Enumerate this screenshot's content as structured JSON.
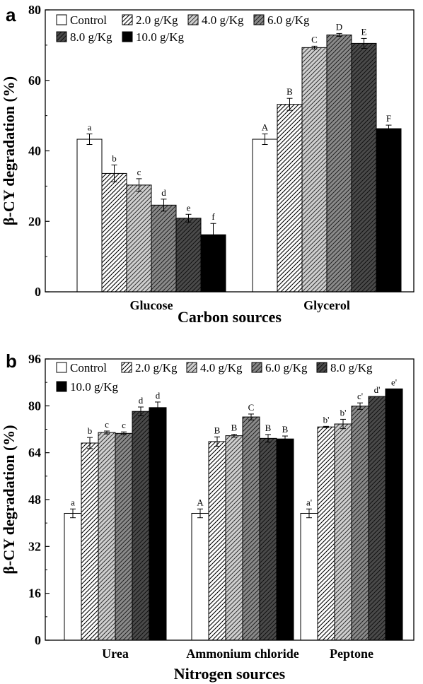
{
  "chart_data": [
    {
      "type": "bar",
      "panel_label": "a",
      "ylabel": "β-CY degradation (%)",
      "xlabel": "Carbon sources",
      "ylim": [
        0,
        80
      ],
      "yticks": [
        0,
        20,
        40,
        60,
        80
      ],
      "categories": [
        "Glucose",
        "Glycerol"
      ],
      "legend_position": "top-left",
      "series": [
        {
          "name": "Control",
          "fill": "white",
          "values": [
            43.3,
            43.3
          ],
          "errors": [
            1.5,
            1.5
          ],
          "labels": [
            "a",
            "A"
          ]
        },
        {
          "name": "2.0 g/Kg",
          "fill": "hatch-white",
          "values": [
            33.6,
            53.2
          ],
          "errors": [
            2.4,
            1.7
          ],
          "labels": [
            "b",
            "B"
          ]
        },
        {
          "name": "4.0 g/Kg",
          "fill": "hatch-lightgray",
          "values": [
            30.3,
            69.3
          ],
          "errors": [
            1.8,
            0.4
          ],
          "labels": [
            "c",
            "C"
          ]
        },
        {
          "name": "6.0 g/Kg",
          "fill": "hatch-gray",
          "values": [
            24.6,
            72.9
          ],
          "errors": [
            1.7,
            0.4
          ],
          "labels": [
            "d",
            "D"
          ]
        },
        {
          "name": "8.0 g/Kg",
          "fill": "hatch-dark",
          "values": [
            20.9,
            70.5
          ],
          "errors": [
            1.1,
            1.4
          ],
          "labels": [
            "e",
            "E"
          ]
        },
        {
          "name": "10.0 g/Kg",
          "fill": "black",
          "values": [
            16.2,
            46.3
          ],
          "errors": [
            3.2,
            1.0
          ],
          "labels": [
            "f",
            "F"
          ]
        }
      ]
    },
    {
      "type": "bar",
      "panel_label": "b",
      "ylabel": "β-CY degradation (%)",
      "xlabel": "Nitrogen sources",
      "ylim": [
        0,
        96
      ],
      "yticks": [
        0,
        16,
        32,
        48,
        64,
        80,
        96
      ],
      "categories": [
        "Urea",
        "Ammonium chloride",
        "Peptone"
      ],
      "legend_position": "top-left",
      "series": [
        {
          "name": "Control",
          "fill": "white",
          "values": [
            43.3,
            43.3,
            43.3
          ],
          "errors": [
            1.5,
            1.5,
            1.5
          ],
          "labels": [
            "a",
            "A",
            "a'"
          ]
        },
        {
          "name": "2.0 g/Kg",
          "fill": "hatch-white",
          "values": [
            67.3,
            67.8,
            72.8
          ],
          "errors": [
            1.9,
            1.6,
            0.2
          ],
          "labels": [
            "b",
            "B",
            "b'"
          ]
        },
        {
          "name": "4.0 g/Kg",
          "fill": "hatch-lightgray",
          "values": [
            70.9,
            69.8,
            73.8
          ],
          "errors": [
            0.5,
            0.5,
            1.6
          ],
          "labels": [
            "c",
            "B",
            "b'"
          ]
        },
        {
          "name": "6.0 g/Kg",
          "fill": "hatch-gray",
          "values": [
            70.6,
            76.2,
            79.9
          ],
          "errors": [
            0.5,
            1.0,
            1.1
          ],
          "labels": [
            "c",
            "C",
            "c'"
          ]
        },
        {
          "name": "8.0 g/Kg",
          "fill": "hatch-dark",
          "values": [
            78.1,
            68.9,
            83.2
          ],
          "errors": [
            1.5,
            1.3,
            0.0
          ],
          "labels": [
            "d",
            "B",
            "d'"
          ]
        },
        {
          "name": "10.0 g/Kg",
          "fill": "black",
          "values": [
            79.4,
            68.7,
            85.8
          ],
          "errors": [
            1.9,
            1.0,
            0.0
          ],
          "labels": [
            "d",
            "B",
            "e'"
          ]
        }
      ]
    }
  ]
}
